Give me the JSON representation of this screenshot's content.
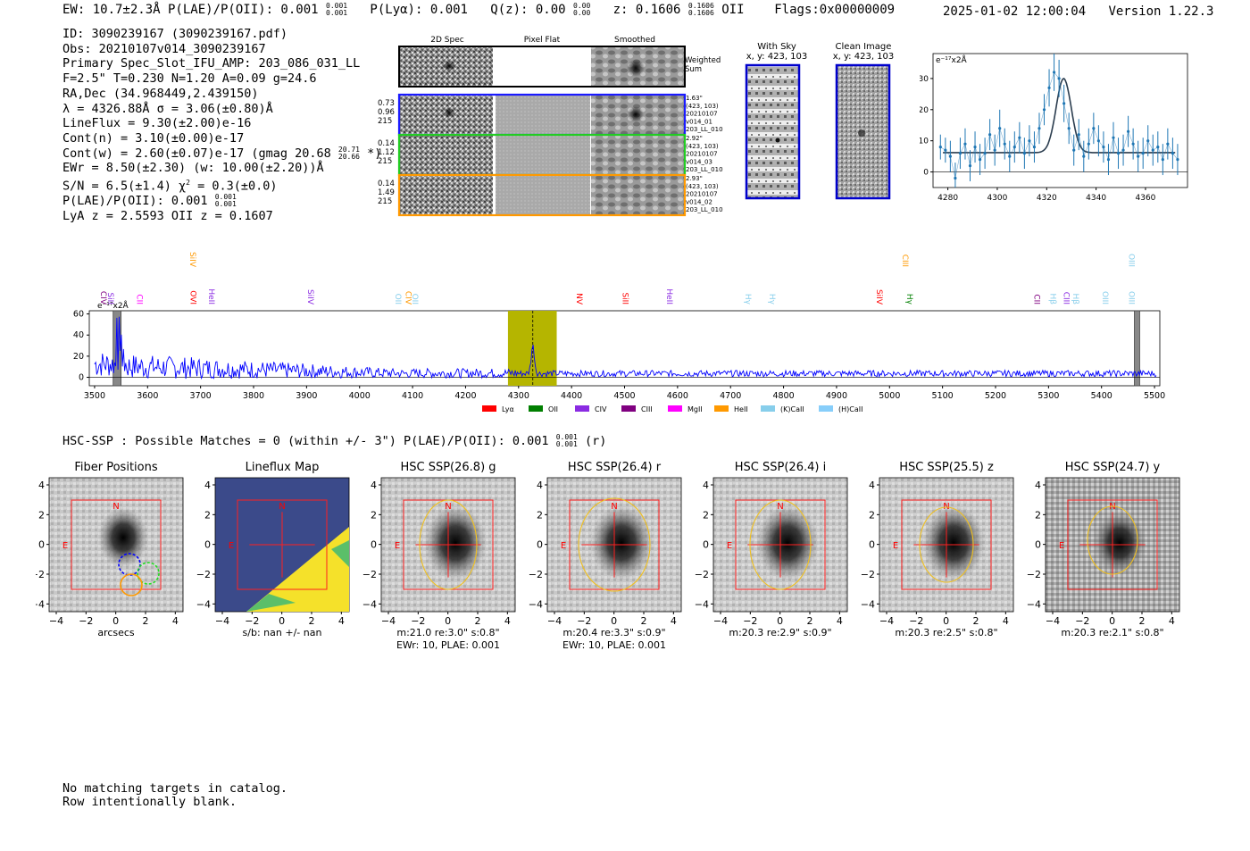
{
  "header": {
    "left": "EW: 10.7±2.3Å  P(LAE)/P(OII): 0.001",
    "left_frac_top": "0.001",
    "left_frac_bottom": "0.001",
    "plya": "P(Lyα): 0.001",
    "qz": "Q(z): 0.00",
    "qz_frac_top": "0.00",
    "qz_frac_bottom": "0.00",
    "z": "z: 0.1606",
    "z_frac_top": "0.1606",
    "z_frac_bottom": "0.1606",
    "z_line": "OII",
    "flags": "Flags:0x00000009",
    "timestamp": "2025-01-02 12:00:04",
    "version": "Version 1.22.3"
  },
  "info": {
    "id": "ID: 3090239167 (3090239167.pdf)",
    "obs": "Obs: 20210107v014_3090239167",
    "slot": "Primary Spec_Slot_IFU_AMP: 203_086_031_LL",
    "params": "F=2.5\"  T=0.230  N=1.20  A=0.09  g=24.6",
    "radec": "RA,Dec (34.968449,2.439150)",
    "lambda": "λ = 4326.88Å  σ = 3.06(±0.80)Å",
    "lineflux": "LineFlux = 9.30(±2.00)e-16",
    "contn": "Cont(n) = 3.10(±0.00)e-17",
    "contw": "Cont(w) = 2.60(±0.07)e-17 (gmag 20.68",
    "contw_frac_top": "20.71",
    "contw_frac_bottom": "20.66",
    "contw_end": "*)",
    "ewr": "EWr = 8.50(±2.30)  (w: 10.00(±2.20))Å",
    "sn": "S/N = 6.5(±1.4)  χ",
    "sn_sup": "2",
    "sn_end": " = 0.3(±0.0)",
    "plae": "P(LAE)/P(OII): 0.001",
    "plae_frac_top": "0.001",
    "plae_frac_bottom": "0.001",
    "lya": "LyA z = 2.5593   OII z = 0.1607"
  },
  "cutouts": {
    "col_labels": [
      "2D Spec",
      "Pixel Flat",
      "Smoothed"
    ],
    "weighted_label_1": "Weighted",
    "weighted_label_2": "Sum",
    "rows": [
      {
        "left": [
          "0.73",
          "0.96",
          "215"
        ],
        "right": [
          "1.63\"",
          "(423, 103)",
          "20210107",
          "v014_01",
          "203_LL_010"
        ],
        "color": "#1a1aff"
      },
      {
        "left": [
          "0.14",
          "1.12",
          "215"
        ],
        "right": [
          "2.92\"",
          "(423, 103)",
          "20210107",
          "v014_03",
          "203_LL_010"
        ],
        "color": "#22cc22"
      },
      {
        "left": [
          "0.14",
          "1.49",
          "215"
        ],
        "right": [
          "2.93\"",
          "(423, 103)",
          "20210107",
          "v014_02",
          "203_LL_010"
        ],
        "color": "#ff9900"
      }
    ],
    "with_sky_title": "With Sky",
    "with_sky_coords": "x, y: 423, 103",
    "clean_title": "Clean Image",
    "clean_coords": "x, y: 423, 103"
  },
  "colors": {
    "spectrum": "#0000ff",
    "zoom_line": "#1f77b4",
    "fit": "#2b3d4f",
    "band": "#b5b500",
    "lya": "#ff0000",
    "oii": "#007f00",
    "civ": "#8a2be2",
    "ciii": "#800080",
    "mgii": "#ff00ff",
    "heii": "#ff9900",
    "kcaii": "#87ceeb",
    "hcaii": "#87cefa"
  },
  "chart_data": [
    {
      "type": "scatter",
      "name": "zoom_spectrum",
      "unit_label": "e⁻¹⁷x2Å",
      "xlim": [
        4274,
        4377
      ],
      "ylim": [
        -5,
        38
      ],
      "xticks": [
        4280,
        4300,
        4320,
        4340,
        4360
      ],
      "yticks": [
        0,
        10,
        20,
        30
      ],
      "x": [
        4277,
        4279,
        4281,
        4283,
        4285,
        4287,
        4289,
        4291,
        4293,
        4295,
        4297,
        4299,
        4301,
        4303,
        4305,
        4307,
        4309,
        4311,
        4313,
        4315,
        4317,
        4319,
        4321,
        4323,
        4325,
        4327,
        4329,
        4331,
        4333,
        4335,
        4337,
        4339,
        4341,
        4343,
        4345,
        4347,
        4349,
        4351,
        4353,
        4355,
        4357,
        4359,
        4361,
        4363,
        4365,
        4367,
        4369,
        4371,
        4373
      ],
      "values": [
        8,
        7,
        5,
        -2,
        6,
        9,
        2,
        8,
        4,
        6,
        12,
        7,
        14,
        9,
        5,
        8,
        11,
        6,
        10,
        8,
        14,
        20,
        27,
        32,
        30,
        22,
        14,
        7,
        12,
        5,
        9,
        14,
        10,
        8,
        4,
        11,
        6,
        7,
        13,
        9,
        5,
        6,
        10,
        7,
        8,
        4,
        9,
        6,
        4
      ],
      "errors": [
        4,
        4,
        5,
        5,
        5,
        5,
        5,
        5,
        5,
        5,
        5,
        5,
        6,
        5,
        5,
        5,
        5,
        5,
        5,
        5,
        5,
        5,
        6,
        6,
        6,
        6,
        5,
        5,
        5,
        5,
        5,
        5,
        5,
        5,
        5,
        5,
        5,
        5,
        5,
        5,
        5,
        5,
        5,
        5,
        5,
        5,
        5,
        5,
        5
      ],
      "fit": {
        "continuum": 6.2,
        "amplitude": 23.8,
        "center": 4326.88,
        "sigma": 3.06
      }
    },
    {
      "type": "line",
      "name": "full_spectrum",
      "unit_label": "e⁻¹⁷x2Å",
      "xlim": [
        3490,
        5510
      ],
      "ylim": [
        -8,
        63
      ],
      "xticks": [
        3500,
        3600,
        3700,
        3800,
        3900,
        4000,
        4100,
        4200,
        4300,
        4400,
        4500,
        4600,
        4700,
        4800,
        4900,
        5000,
        5100,
        5200,
        5300,
        5400,
        5500
      ],
      "yticks": [
        0,
        20,
        40,
        60
      ],
      "band": [
        4280,
        4372
      ],
      "line_center": 4326.88,
      "masked": [
        [
          3535,
          3550
        ],
        [
          5462,
          5472
        ]
      ],
      "legend": [
        {
          "label": "Lyα",
          "color": "#ff0000"
        },
        {
          "label": "OII",
          "color": "#007f00"
        },
        {
          "label": "CIV",
          "color": "#8a2be2"
        },
        {
          "label": "CIII",
          "color": "#800080"
        },
        {
          "label": "MgII",
          "color": "#ff00ff"
        },
        {
          "label": "HeII",
          "color": "#ff9900"
        },
        {
          "label": "(K)CaII",
          "color": "#87ceeb"
        },
        {
          "label": "(H)CaII",
          "color": "#87cefa"
        }
      ],
      "line_labels": [
        {
          "label": "CIV",
          "x": 3512,
          "color": "#800080",
          "row": 1
        },
        {
          "label": "SiII",
          "x": 3525,
          "color": "#8a2be2",
          "row": 1
        },
        {
          "label": "CII",
          "x": 3580,
          "color": "#ff00ff",
          "row": 1
        },
        {
          "label": "SiIV",
          "x": 3680,
          "color": "#ff9900",
          "row": 0
        },
        {
          "label": "OVI",
          "x": 3681,
          "color": "#ff0000",
          "row": 1
        },
        {
          "label": "HeII",
          "x": 3716,
          "color": "#8a2be2",
          "row": 1
        },
        {
          "label": "SiIV",
          "x": 3903,
          "color": "#8a2be2",
          "row": 1
        },
        {
          "label": "OII",
          "x": 4068,
          "color": "#87ceeb",
          "row": 1
        },
        {
          "label": "CIV",
          "x": 4087,
          "color": "#ff9900",
          "row": 1
        },
        {
          "label": "OII",
          "x": 4100,
          "color": "#87ceeb",
          "row": 1
        },
        {
          "label": "NV",
          "x": 4410,
          "color": "#ff0000",
          "row": 1
        },
        {
          "label": "SiII",
          "x": 4497,
          "color": "#ff0000",
          "row": 1
        },
        {
          "label": "HeII",
          "x": 4580,
          "color": "#8a2be2",
          "row": 1
        },
        {
          "label": "Hγ",
          "x": 4728,
          "color": "#87ceeb",
          "row": 1
        },
        {
          "label": "Hγ",
          "x": 4774,
          "color": "#87ceeb",
          "row": 1
        },
        {
          "label": "SiIV",
          "x": 4976,
          "color": "#ff0000",
          "row": 1
        },
        {
          "label": "CIII",
          "x": 5025,
          "color": "#ff9900",
          "row": 0
        },
        {
          "label": "Hγ",
          "x": 5033,
          "color": "#007f00",
          "row": 1
        },
        {
          "label": "CII",
          "x": 5273,
          "color": "#800080",
          "row": 1
        },
        {
          "label": "Hβ",
          "x": 5304,
          "color": "#87ceeb",
          "row": 1
        },
        {
          "label": "CIII",
          "x": 5329,
          "color": "#8a2be2",
          "row": 1
        },
        {
          "label": "Hβ",
          "x": 5347,
          "color": "#87ceeb",
          "row": 1
        },
        {
          "label": "OIII",
          "x": 5402,
          "color": "#87ceeb",
          "row": 1
        },
        {
          "label": "OIII",
          "x": 5452,
          "color": "#87ceeb",
          "row": 0
        },
        {
          "label": "OIII",
          "x": 5452,
          "color": "#87ceeb",
          "row": 1
        }
      ]
    }
  ],
  "hsc": {
    "title": "HSC-SSP : Possible Matches = 0 (within +/- 3\")  P(LAE)/P(OII): 0.001",
    "title_frac_top": "0.001",
    "title_frac_bottom": "0.001",
    "title_end": "(r)",
    "axis_ticks": [
      "4",
      "2",
      "0",
      "−2",
      "−4"
    ],
    "x_ticks": [
      "−4",
      "−2",
      "0",
      "2",
      "4"
    ],
    "north": "N",
    "east": "E",
    "panels": [
      {
        "title": "Fiber Positions",
        "caption1": "arcsecs",
        "caption2": ""
      },
      {
        "title": "Lineflux Map",
        "caption1": "s/b: nan +/- nan",
        "caption2": ""
      },
      {
        "title": "HSC SSP(26.8) g",
        "caption1": "m:21.0  re:3.0\"  s:0.8\"",
        "caption2": "EWr: 10, PLAE: 0.001"
      },
      {
        "title": "HSC SSP(26.4) r",
        "caption1": "m:20.4  re:3.3\"  s:0.9\"",
        "caption2": "EWr: 10, PLAE: 0.001"
      },
      {
        "title": "HSC SSP(26.4) i",
        "caption1": "m:20.3  re:2.9\"  s:0.9\"",
        "caption2": ""
      },
      {
        "title": "HSC SSP(25.5) z",
        "caption1": "m:20.3  re:2.5\"  s:0.8\"",
        "caption2": ""
      },
      {
        "title": "HSC SSP(24.7) y",
        "caption1": "m:20.3  re:2.1\"  s:0.8\"",
        "caption2": ""
      }
    ]
  },
  "footer": {
    "line1": "No matching targets in catalog.",
    "line2": "Row intentionally blank."
  }
}
